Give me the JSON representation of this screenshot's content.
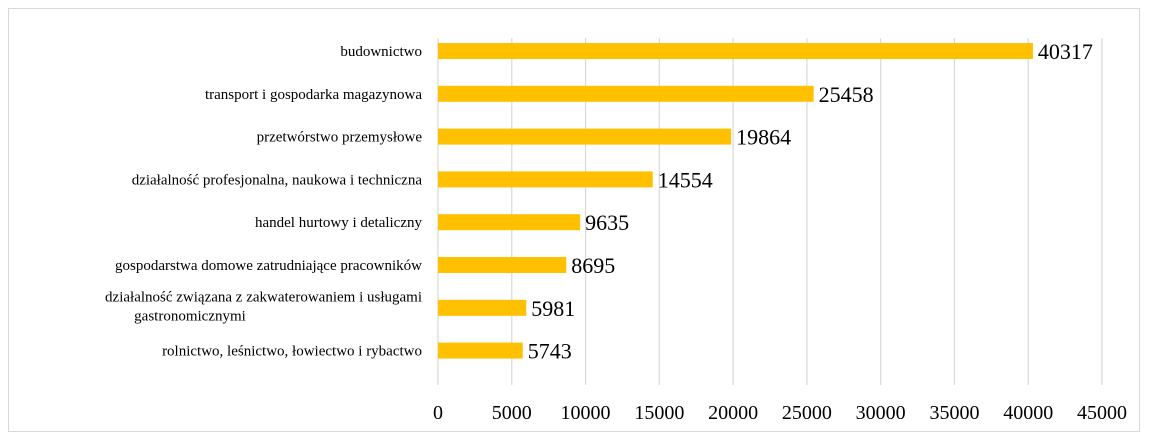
{
  "chart_data": {
    "type": "bar",
    "orientation": "horizontal",
    "title": "",
    "xlabel": "",
    "ylabel": "",
    "categories": [
      "budownictwo",
      "transport i gospodarka magazynowa",
      "przetwórstwo przemysłowe",
      "działalność profesjonalna, naukowa i techniczna",
      "handel hurtowy i detaliczny",
      "gospodarstwa domowe zatrudniające pracowników",
      "działalność związana z zakwaterowaniem i usługami gastronomicznymi",
      "rolnictwo, leśnictwo, łowiectwo i rybactwo"
    ],
    "category_lines": [
      [
        "budownictwo"
      ],
      [
        "transport i gospodarka magazynowa"
      ],
      [
        "przetwórstwo przemysłowe"
      ],
      [
        "działalność profesjonalna, naukowa i techniczna"
      ],
      [
        "handel hurtowy i detaliczny"
      ],
      [
        "gospodarstwa domowe zatrudniające pracowników"
      ],
      [
        "działalność związana z zakwaterowaniem i usługami",
        "gastronomicznymi"
      ],
      [
        "rolnictwo, leśnictwo, łowiectwo i rybactwo"
      ]
    ],
    "values": [
      40317,
      25458,
      19864,
      14554,
      9635,
      8695,
      5981,
      5743
    ],
    "data_labels": [
      "40317",
      "25458",
      "19864",
      "14554",
      "9635",
      "8695",
      "5981",
      "5743"
    ],
    "xlim": [
      0,
      45000
    ],
    "x_ticks": [
      0,
      5000,
      10000,
      15000,
      20000,
      25000,
      30000,
      35000,
      40000,
      45000
    ],
    "x_tick_labels": [
      "0",
      "5000",
      "10000",
      "15000",
      "20000",
      "25000",
      "30000",
      "35000",
      "40000",
      "45000"
    ],
    "grid": "vertical",
    "legend": "none",
    "colors": {
      "bar": "#FFC000",
      "grid": "#d9d9d9",
      "text": "#000000"
    }
  }
}
